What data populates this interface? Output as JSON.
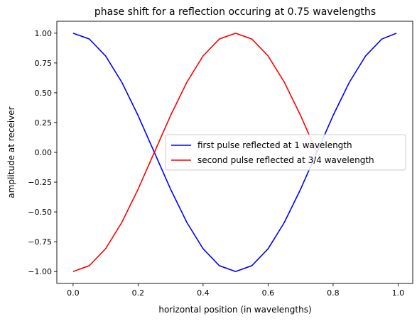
{
  "chart_data": {
    "type": "line",
    "title": "phase shift for a reflection occuring at 0.75 wavelengths",
    "xlabel": "horizontal position (in wavelengths)",
    "ylabel": "amplitude at receiver",
    "xlim": [
      -0.05,
      1.045
    ],
    "ylim": [
      -1.1,
      1.1
    ],
    "xticks": [
      0.0,
      0.2,
      0.4,
      0.6,
      0.8,
      1.0
    ],
    "xtick_labels": [
      "0.0",
      "0.2",
      "0.4",
      "0.6",
      "0.8",
      "1.0"
    ],
    "yticks": [
      1.0,
      0.75,
      0.5,
      0.25,
      0.0,
      -0.25,
      -0.5,
      -0.75,
      -1.0
    ],
    "ytick_labels": [
      "1.00",
      "0.75",
      "0.50",
      "0.25",
      "0.00",
      "−0.25",
      "−0.50",
      "−0.75",
      "−1.00"
    ],
    "grid": false,
    "legend_position": "center-right",
    "series": [
      {
        "name": "first pulse reflected at 1 wavelength",
        "color": "#0000ff",
        "x": [
          0.0,
          0.05,
          0.1,
          0.15,
          0.2,
          0.25,
          0.3,
          0.35,
          0.4,
          0.45,
          0.5,
          0.55,
          0.6,
          0.65,
          0.7,
          0.75,
          0.8,
          0.85,
          0.9,
          0.95,
          0.995
        ],
        "y": [
          1.0,
          0.951,
          0.809,
          0.588,
          0.309,
          0.0,
          -0.309,
          -0.588,
          -0.809,
          -0.951,
          -1.0,
          -0.951,
          -0.809,
          -0.588,
          -0.309,
          0.0,
          0.309,
          0.588,
          0.809,
          0.951,
          1.0
        ]
      },
      {
        "name": "second pulse reflected at 3/4 wavelength",
        "color": "#ff0000",
        "x": [
          0.0,
          0.05,
          0.1,
          0.15,
          0.2,
          0.25,
          0.3,
          0.35,
          0.4,
          0.45,
          0.5,
          0.55,
          0.6,
          0.65,
          0.7,
          0.75
        ],
        "y": [
          -1.0,
          -0.951,
          -0.809,
          -0.588,
          -0.309,
          0.0,
          0.309,
          0.588,
          0.809,
          0.951,
          1.0,
          0.951,
          0.809,
          0.588,
          0.309,
          0.0
        ]
      }
    ]
  }
}
